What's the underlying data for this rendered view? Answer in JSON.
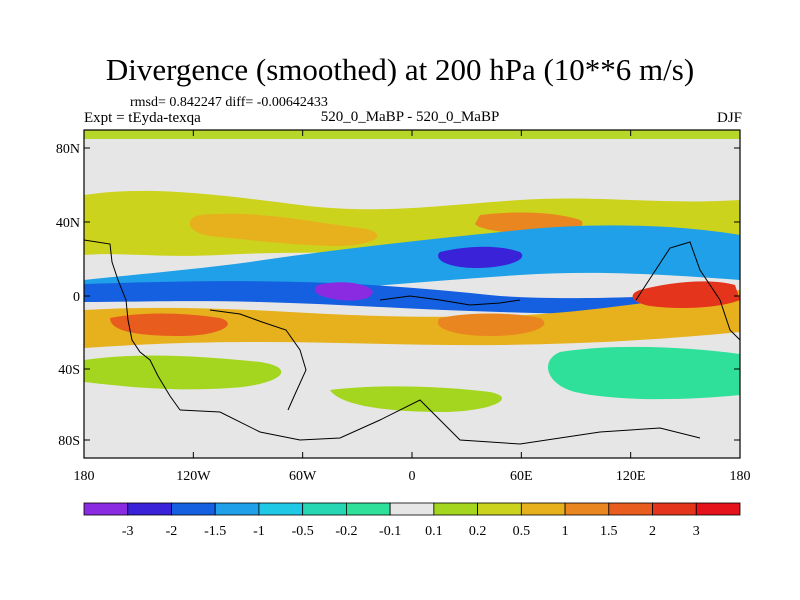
{
  "title": "Divergence (smoothed) at 200 hPa (10**6 m/s)",
  "stats": "rmsd= 0.842247 diff= -0.00642433",
  "left_label": "Expt = tEyda-texqa",
  "center_label": "520_0_MaBP - 520_0_MaBP",
  "right_label": "DJF",
  "chart_data": {
    "type": "heatmap",
    "title": "Divergence (smoothed) at 200 hPa (10**6 m/s)",
    "xlabel": "",
    "ylabel": "",
    "x_ticks": [
      "180",
      "120W",
      "60W",
      "0",
      "60E",
      "120E",
      "180"
    ],
    "y_ticks": [
      "80N",
      "40N",
      "0",
      "40S",
      "80S"
    ],
    "x_range": [
      -180,
      180
    ],
    "y_range": [
      -90,
      90
    ],
    "colorbar": {
      "labels": [
        "-3",
        "-2",
        "-1.5",
        "-1",
        "-0.5",
        "-0.2",
        "-0.1",
        "0.1",
        "0.2",
        "0.5",
        "1",
        "1.5",
        "2",
        "3"
      ],
      "colors": [
        "#8a2be2",
        "#3a22d8",
        "#1560e0",
        "#1fa0e8",
        "#1fc9e6",
        "#27d6b2",
        "#2ee09a",
        "#e6e6e6",
        "#a5d61f",
        "#ccd31c",
        "#e6b11d",
        "#e9861f",
        "#e85c1e",
        "#e4341c",
        "#e6121b"
      ]
    },
    "features": [
      {
        "name": "tropical divergence band",
        "lat": -12,
        "lon_range": [
          -180,
          180
        ],
        "sign": "positive"
      },
      {
        "name": "equatorial convergence band",
        "lat": 2,
        "lon_range": [
          -180,
          180
        ],
        "sign": "negative"
      },
      {
        "name": "northern divergence band",
        "lat": 28,
        "lon_range": [
          -180,
          180
        ],
        "sign": "positive"
      },
      {
        "name": "northern convergence band",
        "lat": 18,
        "lon_range": [
          -180,
          180
        ],
        "sign": "negative"
      }
    ]
  }
}
